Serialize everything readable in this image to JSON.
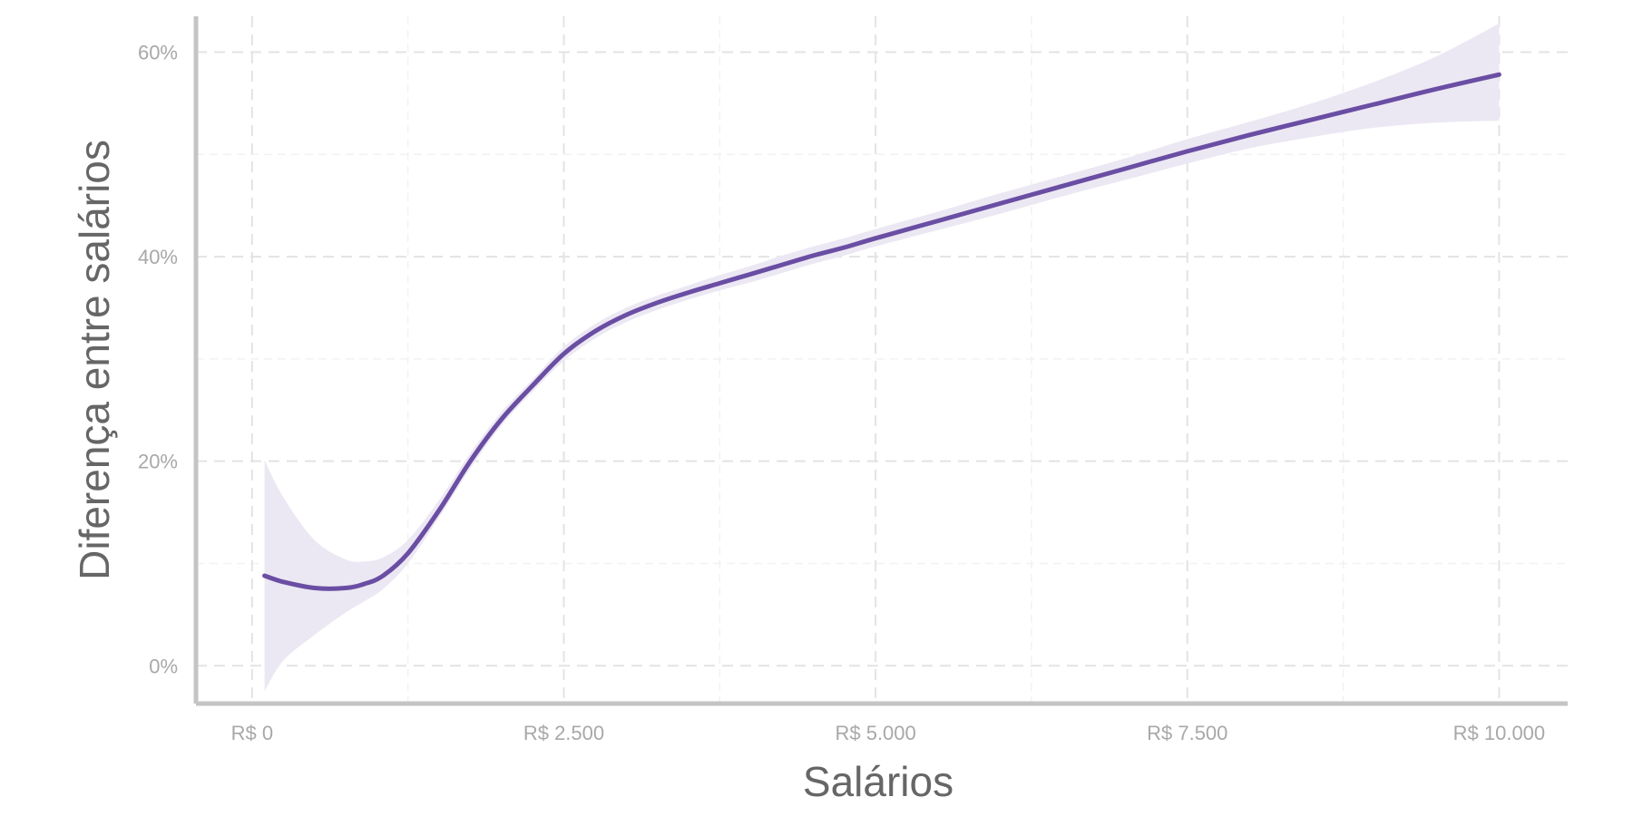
{
  "chart_data": {
    "type": "line",
    "title": "",
    "xlabel": "Salários",
    "ylabel": "Diferença entre salários",
    "xlim": [
      -450,
      10550
    ],
    "ylim": [
      -3.7,
      63.5
    ],
    "x_ticks": [
      {
        "value": 0,
        "label": "R$ 0"
      },
      {
        "value": 2500,
        "label": "R$ 2.500"
      },
      {
        "value": 5000,
        "label": "R$ 5.000"
      },
      {
        "value": 7500,
        "label": "R$ 7.500"
      },
      {
        "value": 10000,
        "label": "R$ 10.000"
      }
    ],
    "y_ticks": [
      {
        "value": 0,
        "label": "0%"
      },
      {
        "value": 20,
        "label": "20%"
      },
      {
        "value": 40,
        "label": "40%"
      },
      {
        "value": 60,
        "label": "60%"
      }
    ],
    "grid": true,
    "series": [
      {
        "x": [
          100,
          250,
          500,
          750,
          900,
          1050,
          1250,
          1500,
          1750,
          2000,
          2250,
          2500,
          2750,
          3000,
          3250,
          3500,
          3750,
          4000,
          4250,
          4500,
          4750,
          5000,
          5500,
          6000,
          6500,
          7000,
          7500,
          8000,
          8500,
          9000,
          9500,
          10000
        ],
        "y": [
          8.8,
          8.2,
          7.6,
          7.6,
          8.0,
          8.8,
          11.0,
          15.2,
          20.0,
          24.1,
          27.4,
          30.5,
          32.7,
          34.3,
          35.5,
          36.5,
          37.4,
          38.3,
          39.2,
          40.1,
          40.9,
          41.8,
          43.5,
          45.2,
          46.9,
          48.6,
          50.3,
          51.9,
          53.4,
          54.9,
          56.4,
          57.8
        ],
        "ci_lower": [
          -2.5,
          0.5,
          3.0,
          5.2,
          6.3,
          7.5,
          10.0,
          14.5,
          19.3,
          23.5,
          26.8,
          29.8,
          32.0,
          33.6,
          34.8,
          35.8,
          36.7,
          37.5,
          38.4,
          39.3,
          40.1,
          41.0,
          42.6,
          44.2,
          45.9,
          47.5,
          49.1,
          50.6,
          51.7,
          52.6,
          53.1,
          53.3
        ],
        "ci_upper": [
          20.1,
          16.5,
          12.3,
          10.4,
          10.2,
          10.6,
          12.3,
          16.2,
          20.8,
          24.8,
          28.0,
          31.2,
          33.4,
          35.0,
          36.2,
          37.2,
          38.2,
          39.1,
          40.1,
          41.0,
          41.8,
          42.7,
          44.4,
          46.2,
          47.9,
          49.6,
          51.5,
          53.2,
          55.0,
          57.1,
          59.6,
          62.8
        ]
      }
    ],
    "colors": {
      "line": "#6a4ea3",
      "ribbon": "#ece8f3",
      "grid": "#e3e3e3",
      "axis": "#c4c4c4"
    }
  }
}
